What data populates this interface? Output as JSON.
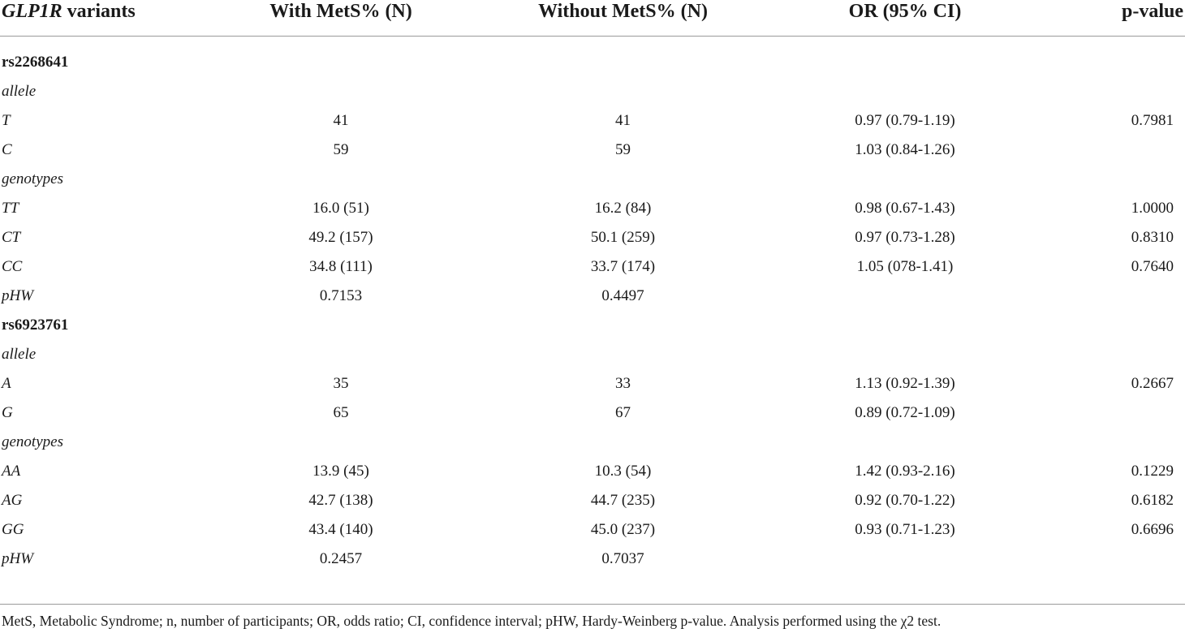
{
  "header": {
    "gene": "GLP1R",
    "col0_suffix": " variants",
    "col1": "With MetS% (N)",
    "col2": "Without MetS% (N)",
    "col3": "OR (95% CI)",
    "col4": "p-value"
  },
  "rows": [
    {
      "label": "rs2268641",
      "style": "bold",
      "with": "",
      "without": "",
      "or": "",
      "p": ""
    },
    {
      "label": "allele",
      "style": "italic",
      "with": "",
      "without": "",
      "or": "",
      "p": ""
    },
    {
      "label": "T",
      "style": "italic",
      "with": "41",
      "without": "41",
      "or": "0.97 (0.79-1.19)",
      "p": "0.7981"
    },
    {
      "label": "C",
      "style": "italic",
      "with": "59",
      "without": "59",
      "or": "1.03 (0.84-1.26)",
      "p": ""
    },
    {
      "label": "genotypes",
      "style": "italic",
      "with": "",
      "without": "",
      "or": "",
      "p": ""
    },
    {
      "label": "TT",
      "style": "italic",
      "with": "16.0 (51)",
      "without": "16.2 (84)",
      "or": "0.98 (0.67-1.43)",
      "p": "1.0000"
    },
    {
      "label": "CT",
      "style": "italic",
      "with": "49.2 (157)",
      "without": "50.1 (259)",
      "or": "0.97 (0.73-1.28)",
      "p": "0.8310"
    },
    {
      "label": "CC",
      "style": "italic",
      "with": "34.8 (111)",
      "without": "33.7 (174)",
      "or": "1.05 (078-1.41)",
      "p": "0.7640"
    },
    {
      "label": "pHW",
      "style": "italic",
      "with": "0.7153",
      "without": "0.4497",
      "or": "",
      "p": ""
    },
    {
      "label": "rs6923761",
      "style": "bold",
      "with": "",
      "without": "",
      "or": "",
      "p": ""
    },
    {
      "label": "allele",
      "style": "italic",
      "with": "",
      "without": "",
      "or": "",
      "p": ""
    },
    {
      "label": "A",
      "style": "italic",
      "with": "35",
      "without": "33",
      "or": "1.13 (0.92-1.39)",
      "p": "0.2667"
    },
    {
      "label": "G",
      "style": "italic",
      "with": "65",
      "without": "67",
      "or": "0.89 (0.72-1.09)",
      "p": ""
    },
    {
      "label": "genotypes",
      "style": "italic",
      "with": "",
      "without": "",
      "or": "",
      "p": ""
    },
    {
      "label": "AA",
      "style": "italic",
      "with": "13.9 (45)",
      "without": "10.3 (54)",
      "or": "1.42 (0.93-2.16)",
      "p": "0.1229"
    },
    {
      "label": "AG",
      "style": "italic",
      "with": "42.7 (138)",
      "without": "44.7 (235)",
      "or": "0.92 (0.70-1.22)",
      "p": "0.6182"
    },
    {
      "label": "GG",
      "style": "italic",
      "with": "43.4 (140)",
      "without": "45.0 (237)",
      "or": "0.93 (0.71-1.23)",
      "p": "0.6696"
    },
    {
      "label": "pHW",
      "style": "italic",
      "with": "0.2457",
      "without": "0.7037",
      "or": "",
      "p": ""
    }
  ],
  "footnote": "MetS, Metabolic Syndrome; n, number of participants; OR, odds ratio; CI, confidence interval; pHW, Hardy-Weinberg p-value. Analysis performed using the χ2 test."
}
